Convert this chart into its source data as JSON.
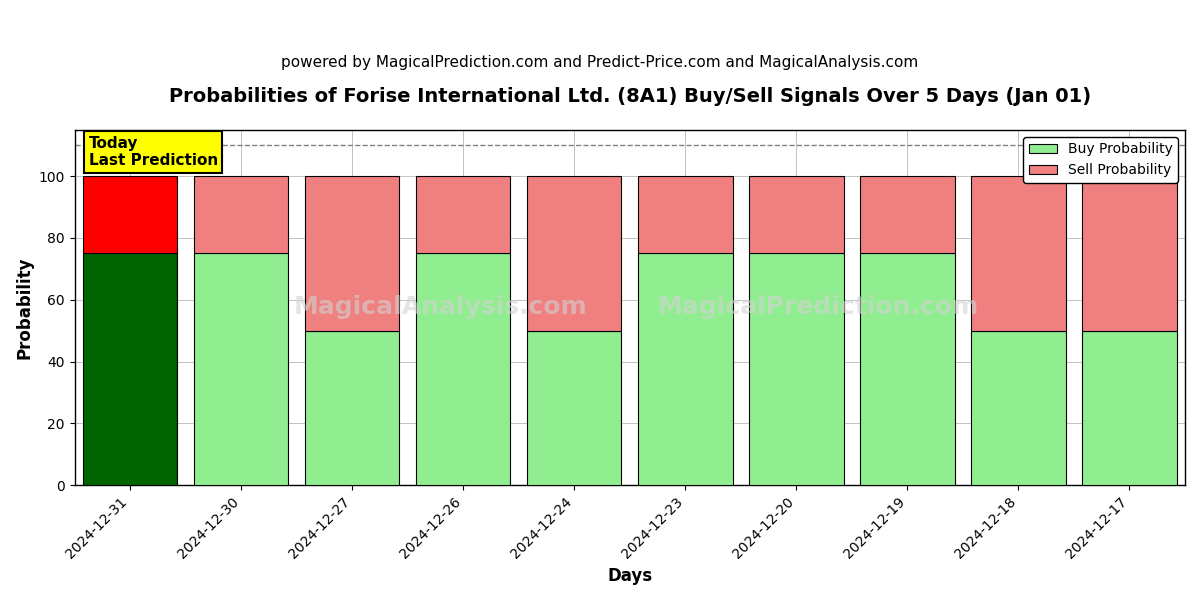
{
  "title": "Probabilities of Forise International Ltd. (8A1) Buy/Sell Signals Over 5 Days (Jan 01)",
  "subtitle": "powered by MagicalPrediction.com and Predict-Price.com and MagicalAnalysis.com",
  "xlabel": "Days",
  "ylabel": "Probability",
  "watermark1": "MagicalAnalysis.com",
  "watermark2": "MagicalPrediction.com",
  "days": [
    "2024-12-31",
    "2024-12-30",
    "2024-12-27",
    "2024-12-26",
    "2024-12-24",
    "2024-12-23",
    "2024-12-20",
    "2024-12-19",
    "2024-12-18",
    "2024-12-17"
  ],
  "buy_values": [
    75,
    75,
    50,
    75,
    50,
    75,
    75,
    75,
    50,
    50
  ],
  "sell_values": [
    25,
    25,
    50,
    25,
    50,
    25,
    25,
    25,
    50,
    50
  ],
  "today_bar_buy_color": "#006400",
  "today_bar_sell_color": "#ff0000",
  "other_bar_buy_color": "#90EE90",
  "other_bar_sell_color": "#F08080",
  "today_annotation_bg": "#ffff00",
  "today_annotation_text": "Today\nLast Prediction",
  "today_annotation_fontsize": 11,
  "ylim": [
    0,
    115
  ],
  "yticks": [
    0,
    20,
    40,
    60,
    80,
    100
  ],
  "dashed_line_y": 110,
  "legend_buy_label": "Buy Probability",
  "legend_sell_label": "Sell Probability",
  "title_fontsize": 14,
  "subtitle_fontsize": 11,
  "axis_label_fontsize": 12,
  "tick_fontsize": 10,
  "background_color": "#ffffff",
  "grid_color": "#aaaaaa",
  "bar_edge_color": "#000000",
  "bar_width": 0.85
}
